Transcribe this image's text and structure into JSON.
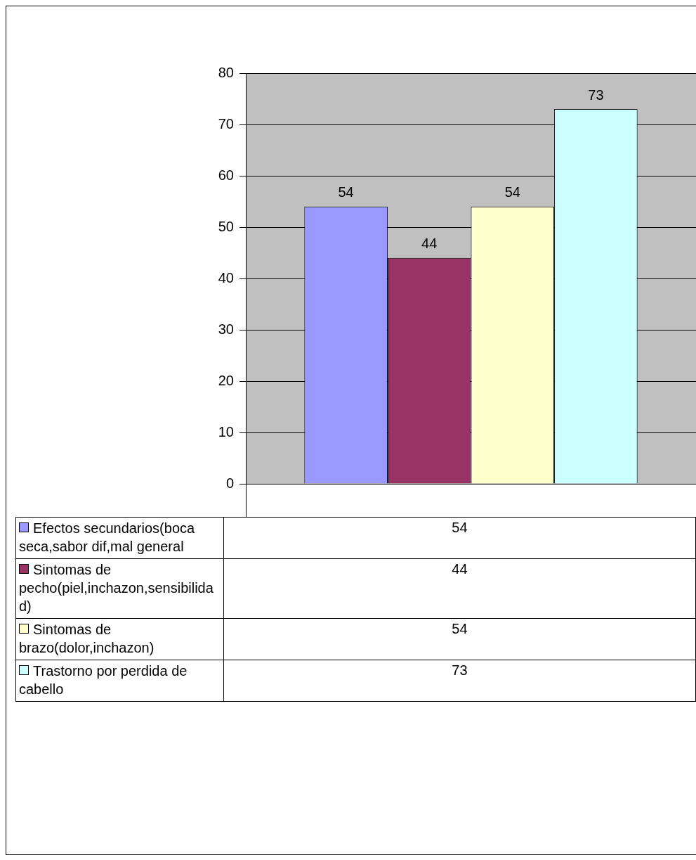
{
  "chart_data": {
    "type": "bar",
    "categories": [
      null
    ],
    "series": [
      {
        "name": "Efectos secundarios(boca seca,sabor dif,mal general",
        "color": "#9999ff",
        "values": [
          54
        ]
      },
      {
        "name": "Sintomas de pecho(piel,inchazon,sensibilidad)",
        "color": "#993366",
        "values": [
          44
        ]
      },
      {
        "name": "Sintomas de brazo(dolor,inchazon)",
        "color": "#ffffcc",
        "values": [
          54
        ]
      },
      {
        "name": "Trastorno por perdida de cabello",
        "color": "#ccffff",
        "values": [
          73
        ]
      }
    ],
    "ylim": [
      0,
      80
    ],
    "yticks": [
      0,
      10,
      20,
      30,
      40,
      50,
      60,
      70,
      80
    ],
    "grid": "y",
    "data_labels": true,
    "legend": "bottom",
    "annotations": [
      "54",
      "44",
      "54",
      "73"
    ]
  }
}
